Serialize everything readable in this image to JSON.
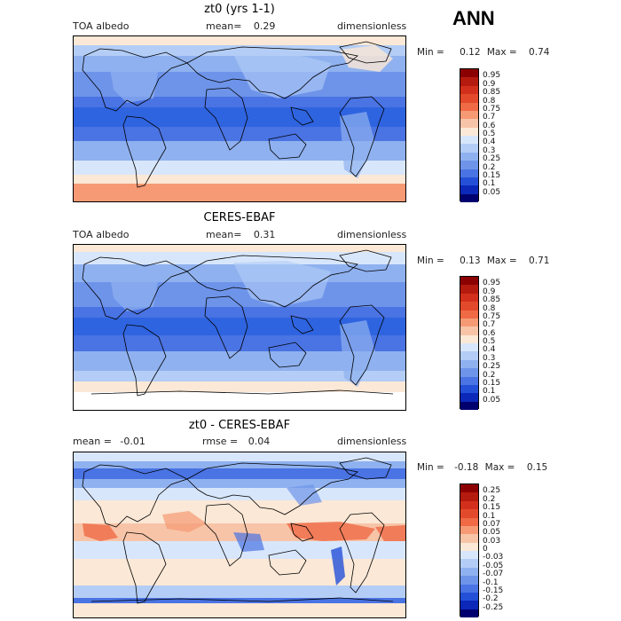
{
  "season_label": "ANN",
  "panels": [
    {
      "title": "zt0 (yrs 1-1)",
      "left_label": "TOA albedo",
      "mean_label": "mean=",
      "mean_value": "0.29",
      "units": "dimensionless",
      "min_label": "Min =",
      "min_value": "0.12",
      "max_label": "Max =",
      "max_value": "0.74",
      "colorbar": {
        "labels": [
          "0.95",
          "0.9",
          "0.85",
          "0.8",
          "0.75",
          "0.7",
          "0.6",
          "0.5",
          "0.4",
          "0.3",
          "0.25",
          "0.2",
          "0.15",
          "0.1",
          "0.05"
        ],
        "colors": [
          "#8b0000",
          "#b51a0f",
          "#d2301c",
          "#e24a2b",
          "#ef6a45",
          "#f59a74",
          "#f8c4a8",
          "#fbe8d6",
          "#d8e6fb",
          "#b3cdf6",
          "#8fb1ef",
          "#6e94ea",
          "#4a73e3",
          "#2450d8",
          "#0b28b9",
          "#00006e"
        ]
      }
    },
    {
      "title": "CERES-EBAF",
      "left_label": "TOA albedo",
      "mean_label": "mean=",
      "mean_value": "0.31",
      "units": "dimensionless",
      "min_label": "Min =",
      "min_value": "0.13",
      "max_label": "Max =",
      "max_value": "0.71",
      "colorbar": {
        "labels": [
          "0.95",
          "0.9",
          "0.85",
          "0.8",
          "0.75",
          "0.7",
          "0.6",
          "0.5",
          "0.4",
          "0.3",
          "0.25",
          "0.2",
          "0.15",
          "0.1",
          "0.05"
        ],
        "colors": [
          "#8b0000",
          "#b51a0f",
          "#d2301c",
          "#e24a2b",
          "#ef6a45",
          "#f59a74",
          "#f8c4a8",
          "#fbe8d6",
          "#d8e6fb",
          "#b3cdf6",
          "#8fb1ef",
          "#6e94ea",
          "#4a73e3",
          "#2450d8",
          "#0b28b9",
          "#00006e"
        ]
      }
    },
    {
      "title": "zt0 - CERES-EBAF",
      "left_label": "mean =",
      "left_value": "-0.01",
      "mid_label": "rmse =",
      "mid_value": "0.04",
      "units": "dimensionless",
      "min_label": "Min =",
      "min_value": "-0.18",
      "max_label": "Max =",
      "max_value": "0.15",
      "colorbar": {
        "labels": [
          "0.25",
          "0.2",
          "0.15",
          "0.1",
          "0.07",
          "0.05",
          "0.03",
          "0",
          "-0.03",
          "-0.05",
          "-0.07",
          "-0.1",
          "-0.15",
          "-0.2",
          "-0.25"
        ],
        "colors": [
          "#8b0000",
          "#b51a0f",
          "#d2301c",
          "#e24a2b",
          "#ef6a45",
          "#f59a74",
          "#f8c4a8",
          "#fbe8d6",
          "#d8e6fb",
          "#b3cdf6",
          "#8fb1ef",
          "#6e94ea",
          "#4a73e3",
          "#2450d8",
          "#0b28b9",
          "#00006e"
        ]
      }
    }
  ],
  "colors": {
    "ocean_mid": "#2f64e0",
    "ocean_deep": "#1f4fd6",
    "light_blue": "#a9c4f4",
    "pale_blue": "#d6e4fb",
    "warm": "#f8c4a8",
    "warm_pale": "#fbe8d6",
    "red": "#ef6a45"
  }
}
